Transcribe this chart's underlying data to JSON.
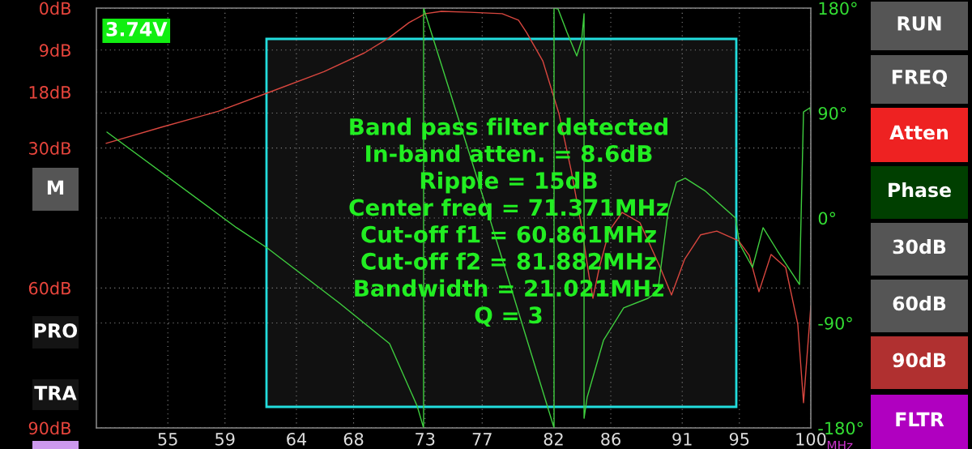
{
  "chart_data": {
    "type": "line",
    "x": [
      50.68,
      54.59,
      58.56,
      61.96,
      65.93,
      68.76,
      70.46,
      71.88,
      73.02,
      74.15,
      76.13,
      78.4,
      79.54,
      80.1,
      81.24,
      82.37,
      83.22,
      83.96,
      84.47,
      84.75,
      85.2,
      85.88,
      86.79,
      88.04,
      89.46,
      90.25,
      91.16,
      92.29,
      93.42,
      94.95,
      95.69,
      96.37,
      97.22,
      98.24,
      99.09,
      99.49,
      100.0
    ],
    "series": [
      {
        "color": "#d9473f",
        "values": [
          29.0,
          25.5,
          22.1,
          18.2,
          13.6,
          9.6,
          6.4,
          3.1,
          1.2,
          0.7,
          0.9,
          1.2,
          2.6,
          5.2,
          11.3,
          22.6,
          34.7,
          46.9,
          57.3,
          62.2,
          55.6,
          47.8,
          43.8,
          46.0,
          55.6,
          61.5,
          53.9,
          48.6,
          47.8,
          49.9,
          53.0,
          60.8,
          52.8,
          55.6,
          67.8,
          84.6,
          63.9
        ]
      },
      {
        "color": "#3fcf3f",
        "axis": "y2",
        "x": [
          50.74,
          59.81,
          61.96,
          67.01,
          70.52,
          72.45,
          72.9,
          72.9,
          77.27,
          82.03,
          82.03,
          82.31,
          82.94,
          83.62,
          83.96,
          84.13,
          84.13,
          84.35,
          85.49,
          86.9,
          88.61,
          89.29,
          90.02,
          90.59,
          91.21,
          92.57,
          94.73,
          95.01,
          95.92,
          96.66,
          97.68,
          99.21,
          99.49,
          99.94,
          100.0
        ],
        "values": [
          73.7,
          -8.3,
          -25.7,
          -73.0,
          -107.7,
          -161.2,
          -180,
          180,
          9.9,
          -180,
          180,
          179.3,
          159.2,
          139.0,
          152.2,
          175.1,
          -171.7,
          -153.6,
          -104.9,
          -77.1,
          -68.8,
          -63.2,
          6.3,
          30.6,
          34.1,
          23.6,
          0.0,
          -22.2,
          -42.4,
          -8.3,
          -28.5,
          -57.0,
          91.0,
          94.5,
          88.3
        ]
      }
    ],
    "xlim": [
      50,
      100
    ],
    "xticks": [
      55,
      59,
      64,
      68,
      73,
      77,
      82,
      86,
      91,
      95,
      100
    ],
    "xlabel": "MHz",
    "ylim": [
      90,
      0
    ],
    "yticks": [
      {
        "value": 0,
        "label": "0dB"
      },
      {
        "value": 9,
        "label": "9dB"
      },
      {
        "value": 18,
        "label": "18dB"
      },
      {
        "value": 30,
        "label": "30dB"
      },
      {
        "value": 60,
        "label": "60dB"
      },
      {
        "value": 90,
        "label": "90dB"
      }
    ],
    "y2lim": [
      -180,
      180
    ],
    "y2ticks": [
      {
        "value": 180,
        "label": "180°"
      },
      {
        "value": 90,
        "label": "90°"
      },
      {
        "value": 0,
        "label": "0°"
      },
      {
        "value": -90,
        "label": "-90°"
      },
      {
        "value": -180,
        "label": "-180°"
      }
    ],
    "grid": true,
    "line_style": "solid",
    "marker": "none",
    "annotations": [
      "3.74V",
      "Band pass filter detected\nIn-band atten. = 8.6dB\nRipple = 15dB\nCenter freq = 71.371MHz\nCut-off f1 = 60.861MHz\nCut-off f2 = 81.882MHz\nBandwidth = 21.021MHz\nQ = 3",
      "M",
      "PRO",
      "TRA",
      "RUN",
      "FREQ",
      "Atten",
      "Phase",
      "30dB",
      "60dB",
      "90dB",
      "FLTR"
    ]
  }
}
